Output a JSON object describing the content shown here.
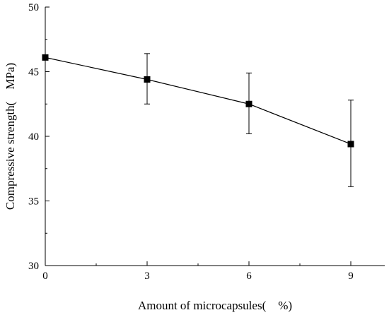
{
  "chart_data": {
    "type": "line",
    "title": "",
    "xlabel": "Amount of microcapsules(　%)",
    "ylabel": "Compressive strength(　MPa)",
    "x": [
      0,
      3,
      6,
      9
    ],
    "xticks": [
      "0",
      "3",
      "6",
      "9"
    ],
    "yticks": [
      "30",
      "35",
      "40",
      "45",
      "50"
    ],
    "xlim": [
      0,
      10
    ],
    "ylim": [
      30,
      50
    ],
    "grid": false,
    "legend": "none",
    "series": [
      {
        "values": [
          46.1,
          44.4,
          42.5,
          39.4
        ],
        "error_upper": [
          46.1,
          46.4,
          44.9,
          42.8
        ],
        "error_lower": [
          46.1,
          42.5,
          40.2,
          36.1
        ],
        "marker": "square",
        "color": "#000000"
      }
    ]
  }
}
